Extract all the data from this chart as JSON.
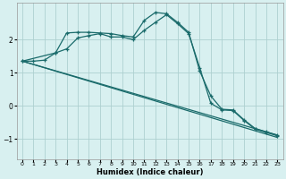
{
  "xlabel": "Humidex (Indice chaleur)",
  "bg_color": "#d8f0f0",
  "grid_color": "#aed0d0",
  "line_color": "#1a6b6b",
  "xlim": [
    -0.5,
    23.5
  ],
  "ylim": [
    -1.6,
    3.1
  ],
  "xticks": [
    0,
    1,
    2,
    3,
    4,
    5,
    6,
    7,
    8,
    9,
    10,
    11,
    12,
    13,
    14,
    15,
    16,
    17,
    18,
    19,
    20,
    21,
    22,
    23
  ],
  "yticks": [
    -1,
    0,
    1,
    2
  ],
  "line1_x": [
    0,
    1,
    2,
    3,
    4,
    5,
    6,
    7,
    8,
    9,
    10,
    11,
    12,
    13,
    14,
    15,
    16,
    17,
    18,
    19,
    20,
    21,
    22,
    23
  ],
  "line1_y": [
    1.35,
    1.35,
    1.38,
    1.6,
    2.2,
    2.22,
    2.22,
    2.2,
    2.18,
    2.12,
    2.08,
    2.58,
    2.82,
    2.78,
    2.52,
    2.22,
    1.05,
    0.3,
    -0.1,
    -0.12,
    -0.42,
    -0.68,
    -0.78,
    -0.88
  ],
  "line2_x": [
    0,
    3,
    4,
    5,
    6,
    7,
    8,
    9,
    10,
    11,
    12,
    13,
    14,
    15,
    16,
    17,
    18,
    19,
    20,
    21,
    22,
    23
  ],
  "line2_y": [
    1.35,
    1.6,
    1.72,
    2.05,
    2.12,
    2.18,
    2.08,
    2.08,
    2.0,
    2.28,
    2.52,
    2.75,
    2.48,
    2.18,
    1.15,
    0.08,
    -0.12,
    -0.14,
    -0.44,
    -0.7,
    -0.8,
    -0.9
  ],
  "line3_x": [
    0,
    23
  ],
  "line3_y": [
    1.35,
    -0.88
  ],
  "line4_x": [
    0,
    23
  ],
  "line4_y": [
    1.35,
    -0.95
  ]
}
